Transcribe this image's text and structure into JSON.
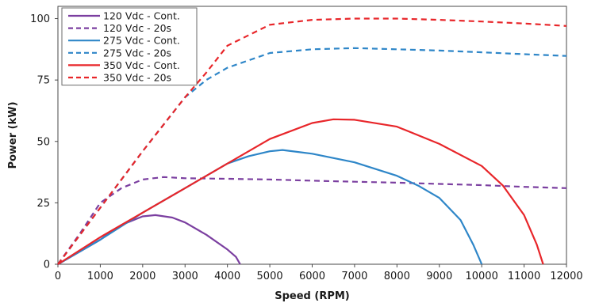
{
  "chart_data": {
    "type": "line",
    "title": "",
    "xlabel": "Speed (RPM)",
    "ylabel": "Power (kW)",
    "xlim": [
      0,
      12000
    ],
    "ylim": [
      0,
      105
    ],
    "x_ticks": [
      0,
      1000,
      2000,
      3000,
      4000,
      5000,
      6000,
      7000,
      8000,
      9000,
      10000,
      11000,
      12000
    ],
    "y_ticks": [
      0,
      25,
      50,
      75,
      100
    ],
    "grid": false,
    "legend_position": "top-left",
    "series": [
      {
        "name": "120 Vdc - Cont.",
        "color": "#7b3fa0",
        "dash": "solid",
        "points": [
          [
            0,
            0
          ],
          [
            500,
            5
          ],
          [
            1000,
            10
          ],
          [
            1500,
            16
          ],
          [
            2000,
            19.5
          ],
          [
            2300,
            20
          ],
          [
            2700,
            19
          ],
          [
            3000,
            17
          ],
          [
            3500,
            12
          ],
          [
            4000,
            6
          ],
          [
            4200,
            3
          ],
          [
            4300,
            0
          ]
        ]
      },
      {
        "name": "120 Vdc - 20s",
        "color": "#7b3fa0",
        "dash": "dashed",
        "points": [
          [
            0,
            0
          ],
          [
            500,
            12
          ],
          [
            1000,
            25
          ],
          [
            1500,
            31
          ],
          [
            2000,
            34.5
          ],
          [
            2500,
            35.5
          ],
          [
            3000,
            35
          ],
          [
            4000,
            34.8
          ],
          [
            5000,
            34.5
          ],
          [
            6000,
            34
          ],
          [
            7000,
            33.6
          ],
          [
            8000,
            33.2
          ],
          [
            9000,
            32.7
          ],
          [
            10000,
            32.2
          ],
          [
            11000,
            31.5
          ],
          [
            12000,
            31
          ]
        ]
      },
      {
        "name": "275 Vdc - Cont.",
        "color": "#2e86c8",
        "dash": "solid",
        "points": [
          [
            0,
            0
          ],
          [
            1000,
            10
          ],
          [
            2000,
            21
          ],
          [
            3000,
            31
          ],
          [
            4000,
            41
          ],
          [
            4500,
            44
          ],
          [
            5000,
            46
          ],
          [
            5300,
            46.5
          ],
          [
            6000,
            45
          ],
          [
            7000,
            41.5
          ],
          [
            8000,
            36
          ],
          [
            8500,
            32
          ],
          [
            9000,
            27
          ],
          [
            9500,
            18
          ],
          [
            9800,
            8
          ],
          [
            10000,
            0
          ]
        ]
      },
      {
        "name": "275 Vdc - 20s",
        "color": "#2e86c8",
        "dash": "dashed",
        "points": [
          [
            0,
            0
          ],
          [
            1000,
            23
          ],
          [
            2000,
            46
          ],
          [
            3000,
            68
          ],
          [
            3500,
            75
          ],
          [
            4000,
            80
          ],
          [
            5000,
            86
          ],
          [
            6000,
            87.5
          ],
          [
            7000,
            88
          ],
          [
            8000,
            87.5
          ],
          [
            9000,
            87
          ],
          [
            10000,
            86.3
          ],
          [
            11000,
            85.5
          ],
          [
            12000,
            84.8
          ]
        ]
      },
      {
        "name": "350 Vdc - Cont.",
        "color": "#e8262a",
        "dash": "solid",
        "points": [
          [
            0,
            0
          ],
          [
            1000,
            11
          ],
          [
            2000,
            21
          ],
          [
            3000,
            31
          ],
          [
            4000,
            41
          ],
          [
            5000,
            51
          ],
          [
            6000,
            57.5
          ],
          [
            6500,
            59
          ],
          [
            7000,
            58.8
          ],
          [
            8000,
            56
          ],
          [
            9000,
            49
          ],
          [
            10000,
            40
          ],
          [
            10500,
            32
          ],
          [
            11000,
            20
          ],
          [
            11300,
            8
          ],
          [
            11450,
            0
          ]
        ]
      },
      {
        "name": "350 Vdc - 20s",
        "color": "#e8262a",
        "dash": "dashed",
        "points": [
          [
            0,
            0
          ],
          [
            1000,
            23
          ],
          [
            2000,
            46
          ],
          [
            3000,
            68
          ],
          [
            3500,
            78
          ],
          [
            4000,
            89
          ],
          [
            5000,
            97.5
          ],
          [
            6000,
            99.5
          ],
          [
            7000,
            100
          ],
          [
            8000,
            100
          ],
          [
            9000,
            99.5
          ],
          [
            10000,
            98.8
          ],
          [
            11000,
            98
          ],
          [
            12000,
            97
          ]
        ]
      }
    ]
  }
}
